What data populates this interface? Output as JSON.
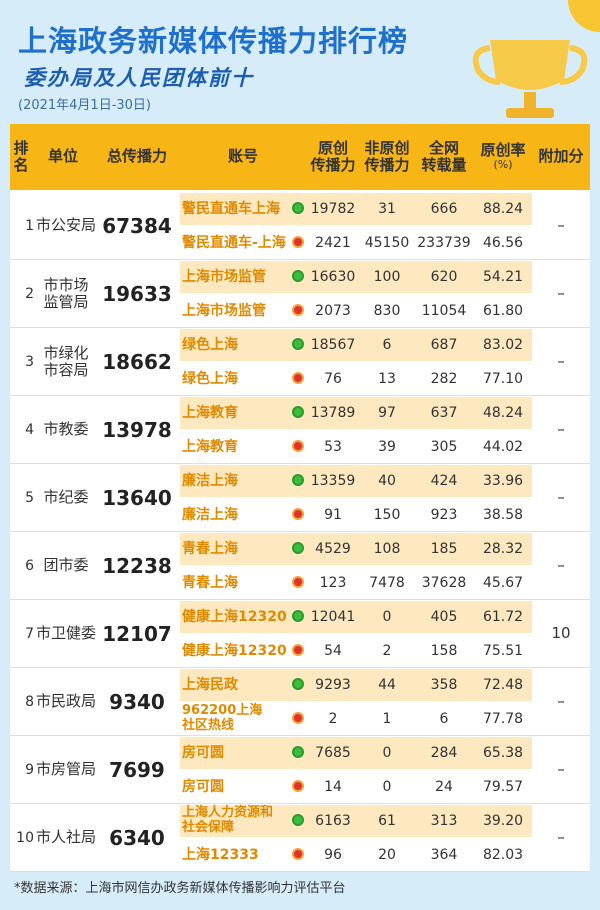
{
  "title": "上海政务新媒体传播力排行榜",
  "subtitle": "委办局及人民团体前十",
  "date": "(2021年4月1日-30日)",
  "header": [
    [
      "排名"
    ],
    [
      "单位"
    ],
    [
      "总传播力"
    ],
    [
      "账号"
    ],
    [
      "原创",
      "传播力"
    ],
    [
      "非原创",
      "传播力"
    ],
    [
      "全网",
      "转载量"
    ],
    [
      "原创率",
      "(%)"
    ],
    [
      "附加分"
    ]
  ],
  "rows": [
    {
      "rank": "1",
      "unit": [
        "市公安局"
      ],
      "total": "67384",
      "bonus": "–",
      "accounts": [
        {
          "name": [
            "警民直通车上海"
          ],
          "original": "19782",
          "non_original": "31",
          "reposts": "666",
          "rate": "88.24"
        },
        {
          "name": [
            "警民直通车-上海"
          ],
          "original": "2421",
          "non_original": "45150",
          "reposts": "233739",
          "rate": "46.56"
        }
      ]
    },
    {
      "rank": "2",
      "unit": [
        "市市场",
        "监管局"
      ],
      "total": "19633",
      "bonus": "–",
      "accounts": [
        {
          "name": [
            "上海市场监管"
          ],
          "original": "16630",
          "non_original": "100",
          "reposts": "620",
          "rate": "54.21"
        },
        {
          "name": [
            "上海市场监管"
          ],
          "original": "2073",
          "non_original": "830",
          "reposts": "11054",
          "rate": "61.80"
        }
      ]
    },
    {
      "rank": "3",
      "unit": [
        "市绿化",
        "市容局"
      ],
      "total": "18662",
      "bonus": "–",
      "accounts": [
        {
          "name": [
            "绿色上海"
          ],
          "original": "18567",
          "non_original": "6",
          "reposts": "687",
          "rate": "83.02"
        },
        {
          "name": [
            "绿色上海"
          ],
          "original": "76",
          "non_original": "13",
          "reposts": "282",
          "rate": "77.10"
        }
      ]
    },
    {
      "rank": "4",
      "unit": [
        "市教委"
      ],
      "total": "13978",
      "bonus": "–",
      "accounts": [
        {
          "name": [
            "上海教育"
          ],
          "original": "13789",
          "non_original": "97",
          "reposts": "637",
          "rate": "48.24"
        },
        {
          "name": [
            "上海教育"
          ],
          "original": "53",
          "non_original": "39",
          "reposts": "305",
          "rate": "44.02"
        }
      ]
    },
    {
      "rank": "5",
      "unit": [
        "市纪委"
      ],
      "total": "13640",
      "bonus": "–",
      "accounts": [
        {
          "name": [
            "廉洁上海"
          ],
          "original": "13359",
          "non_original": "40",
          "reposts": "424",
          "rate": "33.96"
        },
        {
          "name": [
            "廉洁上海"
          ],
          "original": "91",
          "non_original": "150",
          "reposts": "923",
          "rate": "38.58"
        }
      ]
    },
    {
      "rank": "6",
      "unit": [
        "团市委"
      ],
      "total": "12238",
      "bonus": "–",
      "accounts": [
        {
          "name": [
            "青春上海"
          ],
          "original": "4529",
          "non_original": "108",
          "reposts": "185",
          "rate": "28.32"
        },
        {
          "name": [
            "青春上海"
          ],
          "original": "123",
          "non_original": "7478",
          "reposts": "37628",
          "rate": "45.67"
        }
      ]
    },
    {
      "rank": "7",
      "unit": [
        "市卫健委"
      ],
      "total": "12107",
      "bonus": "10",
      "accounts": [
        {
          "name": [
            "健康上海12320"
          ],
          "original": "12041",
          "non_original": "0",
          "reposts": "405",
          "rate": "61.72"
        },
        {
          "name": [
            "健康上海12320"
          ],
          "original": "54",
          "non_original": "2",
          "reposts": "158",
          "rate": "75.51"
        }
      ]
    },
    {
      "rank": "8",
      "unit": [
        "市民政局"
      ],
      "total": "9340",
      "bonus": "–",
      "accounts": [
        {
          "name": [
            "上海民政"
          ],
          "original": "9293",
          "non_original": "44",
          "reposts": "358",
          "rate": "72.48"
        },
        {
          "name": [
            "962200上海",
            "社区热线"
          ],
          "original": "2",
          "non_original": "1",
          "reposts": "6",
          "rate": "77.78"
        }
      ]
    },
    {
      "rank": "9",
      "unit": [
        "市房管局"
      ],
      "total": "7699",
      "bonus": "–",
      "accounts": [
        {
          "name": [
            "房可圆"
          ],
          "original": "7685",
          "non_original": "0",
          "reposts": "284",
          "rate": "65.38"
        },
        {
          "name": [
            "房可圆"
          ],
          "original": "14",
          "non_original": "0",
          "reposts": "24",
          "rate": "79.57"
        }
      ]
    },
    {
      "rank": "10",
      "unit": [
        "市人社局"
      ],
      "total": "6340",
      "bonus": "–",
      "accounts": [
        {
          "name": [
            "上海人力资源和",
            "社会保障"
          ],
          "original": "6163",
          "non_original": "61",
          "reposts": "313",
          "rate": "39.20"
        },
        {
          "name": [
            "上海12333"
          ],
          "original": "96",
          "non_original": "20",
          "reposts": "364",
          "rate": "82.03"
        }
      ]
    }
  ],
  "footer": "*数据来源：上海市网信办政务新媒体传播影响力评估平台"
}
